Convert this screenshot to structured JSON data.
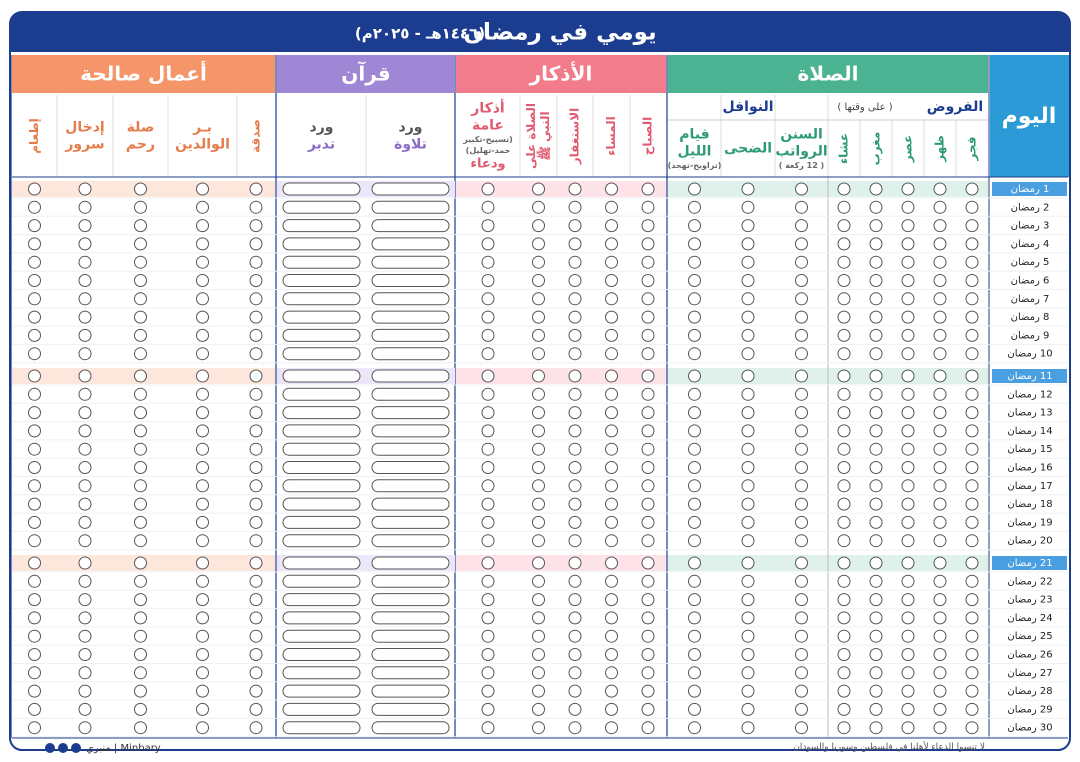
{
  "header": {
    "title": "يومي في رمضان",
    "years": "(١٤٤٦هـ - ٢٠٢٥م)"
  },
  "day_header": "اليوم",
  "prayer": {
    "title": "الصلاة",
    "fard": {
      "title": "الفروض",
      "note": "( على وقتها )",
      "columns": [
        {
          "lines": [
            "فجر"
          ]
        },
        {
          "lines": [
            "ظهر"
          ]
        },
        {
          "lines": [
            "عصر"
          ]
        },
        {
          "lines": [
            "مغرب"
          ]
        },
        {
          "lines": [
            "عشاء"
          ]
        }
      ]
    },
    "nafl": {
      "title": "النوافل",
      "columns": [
        {
          "lines": [
            "السنن",
            "الرواتب"
          ],
          "note": [
            "( 12 ركعة )"
          ]
        },
        {
          "lines": [
            "الضحى"
          ]
        },
        {
          "lines": [
            "قيام",
            "الليل"
          ],
          "note": [
            "(تراويح-تهجد)"
          ]
        }
      ]
    }
  },
  "adhkar": {
    "title": "الأذكار",
    "columns": [
      {
        "lines": [
          "الصباح"
        ]
      },
      {
        "lines": [
          "المساء"
        ]
      },
      {
        "lines": [
          "الاستغفار"
        ]
      },
      {
        "lines": [
          "الصلاة على",
          "النبي ﷺ"
        ]
      },
      {
        "lines": [
          "أذكار",
          "عامة"
        ],
        "note": [
          "(تسبيح-تكبير",
          "حمد-تهليل)"
        ],
        "tail": "ودعاء"
      }
    ]
  },
  "quran": {
    "title": "قرآن",
    "columns": [
      {
        "lines": [
          "ورد",
          "تلاوة"
        ]
      },
      {
        "lines": [
          "ورد",
          "تدبر"
        ]
      }
    ]
  },
  "deeds": {
    "title": "أعمال صالحة",
    "columns": [
      {
        "lines": [
          "صدقة"
        ]
      },
      {
        "lines": [
          "بـر",
          "الوالدين"
        ]
      },
      {
        "lines": [
          "صلة",
          "رحم"
        ]
      },
      {
        "lines": [
          "إدخال",
          "سرور"
        ]
      },
      {
        "lines": [
          "إطعام"
        ]
      }
    ]
  },
  "days": [
    "1 رمضان",
    "2 رمضان",
    "3 رمضان",
    "4 رمضان",
    "5 رمضان",
    "6 رمضان",
    "7 رمضان",
    "8 رمضان",
    "9 رمضان",
    "10 رمضان",
    "11 رمضان",
    "12 رمضان",
    "13 رمضان",
    "14 رمضان",
    "15 رمضان",
    "16 رمضان",
    "17 رمضان",
    "18 رمضان",
    "19 رمضان",
    "20 رمضان",
    "21 رمضان",
    "22 رمضان",
    "23 رمضان",
    "24 رمضان",
    "25 رمضان",
    "26 رمضان",
    "27 رمضان",
    "28 رمضان",
    "29 رمضان",
    "30 رمضان"
  ],
  "footer": {
    "dua": "لا تنسوا الدعاء لأهلنا في فلسطين وسوريا والسودان",
    "brand": "منبري | Minbary"
  }
}
